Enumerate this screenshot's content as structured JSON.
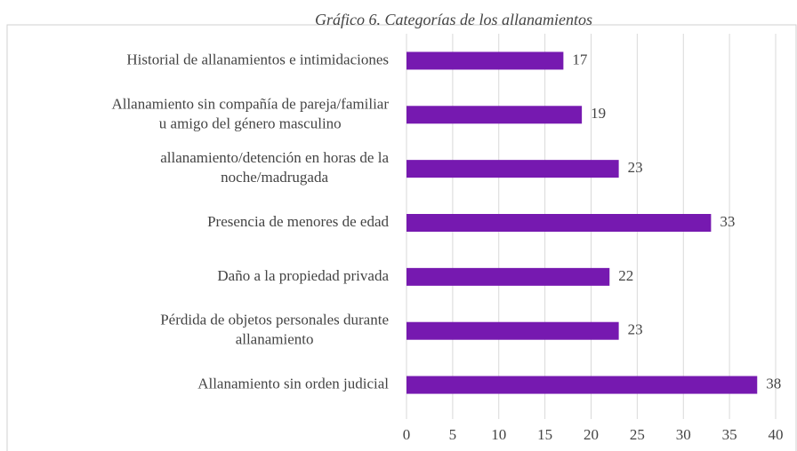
{
  "chart_data": {
    "type": "bar",
    "orientation": "horizontal",
    "title": "Gráfico 6. Categorías de los allanamientos",
    "categories": [
      "Historial de allanamientos e intimidaciones",
      "Allanamiento sin compañía de pareja/familiar\nu amigo del género masculino",
      "allanamiento/detención en horas de la\nnoche/madrugada",
      "Presencia de menores de edad",
      "Daño a la propiedad privada",
      "Pérdida de objetos personales durante\nallanamiento",
      "Allanamiento sin orden judicial"
    ],
    "values": [
      17,
      19,
      23,
      33,
      22,
      23,
      38
    ],
    "color": "#7619b0",
    "xlim": [
      0,
      40
    ],
    "xticks": [
      0,
      5,
      10,
      15,
      20,
      25,
      30,
      35,
      40
    ],
    "grid": true
  }
}
